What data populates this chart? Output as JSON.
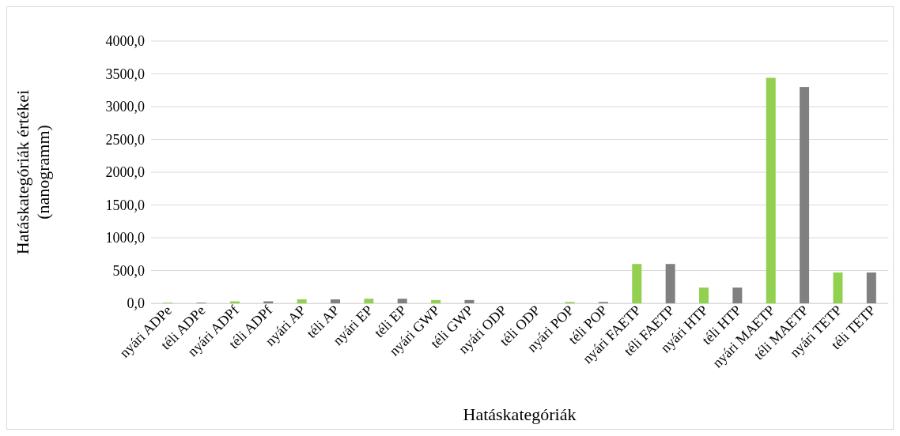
{
  "chart_data": {
    "type": "bar",
    "xlabel": "Hatáskategóriák",
    "ylabel": "Hatáskategóriák értékei (nanogramm)",
    "categories": [
      "nyári ADPe",
      "téli ADPe",
      "nyári ADPf",
      "téli ADPf",
      "nyári AP",
      "téli AP",
      "nyári EP",
      "téli EP",
      "nyári GWP",
      "téli GWP",
      "nyári ODP",
      "téli ODP",
      "nyári POP",
      "téli POP",
      "nyári FAETP",
      "téli FAETP",
      "nyári HTP",
      "téli HTP",
      "nyári MAETP",
      "téli MAETP",
      "nyári TETP",
      "téli TETP"
    ],
    "values": [
      10,
      10,
      30,
      30,
      60,
      60,
      70,
      70,
      50,
      50,
      0,
      0,
      20,
      20,
      600,
      600,
      240,
      240,
      3440,
      3300,
      470,
      470
    ],
    "colors": [
      "#92d050",
      "#808080",
      "#92d050",
      "#808080",
      "#92d050",
      "#808080",
      "#92d050",
      "#808080",
      "#92d050",
      "#808080",
      "#92d050",
      "#808080",
      "#92d050",
      "#808080",
      "#92d050",
      "#808080",
      "#92d050",
      "#808080",
      "#92d050",
      "#808080",
      "#92d050",
      "#808080"
    ],
    "ylim": [
      0,
      4000
    ],
    "yticks": [
      {
        "value": 0,
        "label": "0,0"
      },
      {
        "value": 500,
        "label": "500,0"
      },
      {
        "value": 1000,
        "label": "1000,0"
      },
      {
        "value": 1500,
        "label": "1500,0"
      },
      {
        "value": 2000,
        "label": "2000,0"
      },
      {
        "value": 2500,
        "label": "2500,0"
      },
      {
        "value": 3000,
        "label": "3000,0"
      },
      {
        "value": 3500,
        "label": "3500,0"
      },
      {
        "value": 4000,
        "label": "4000,0"
      }
    ],
    "grid": "y"
  }
}
